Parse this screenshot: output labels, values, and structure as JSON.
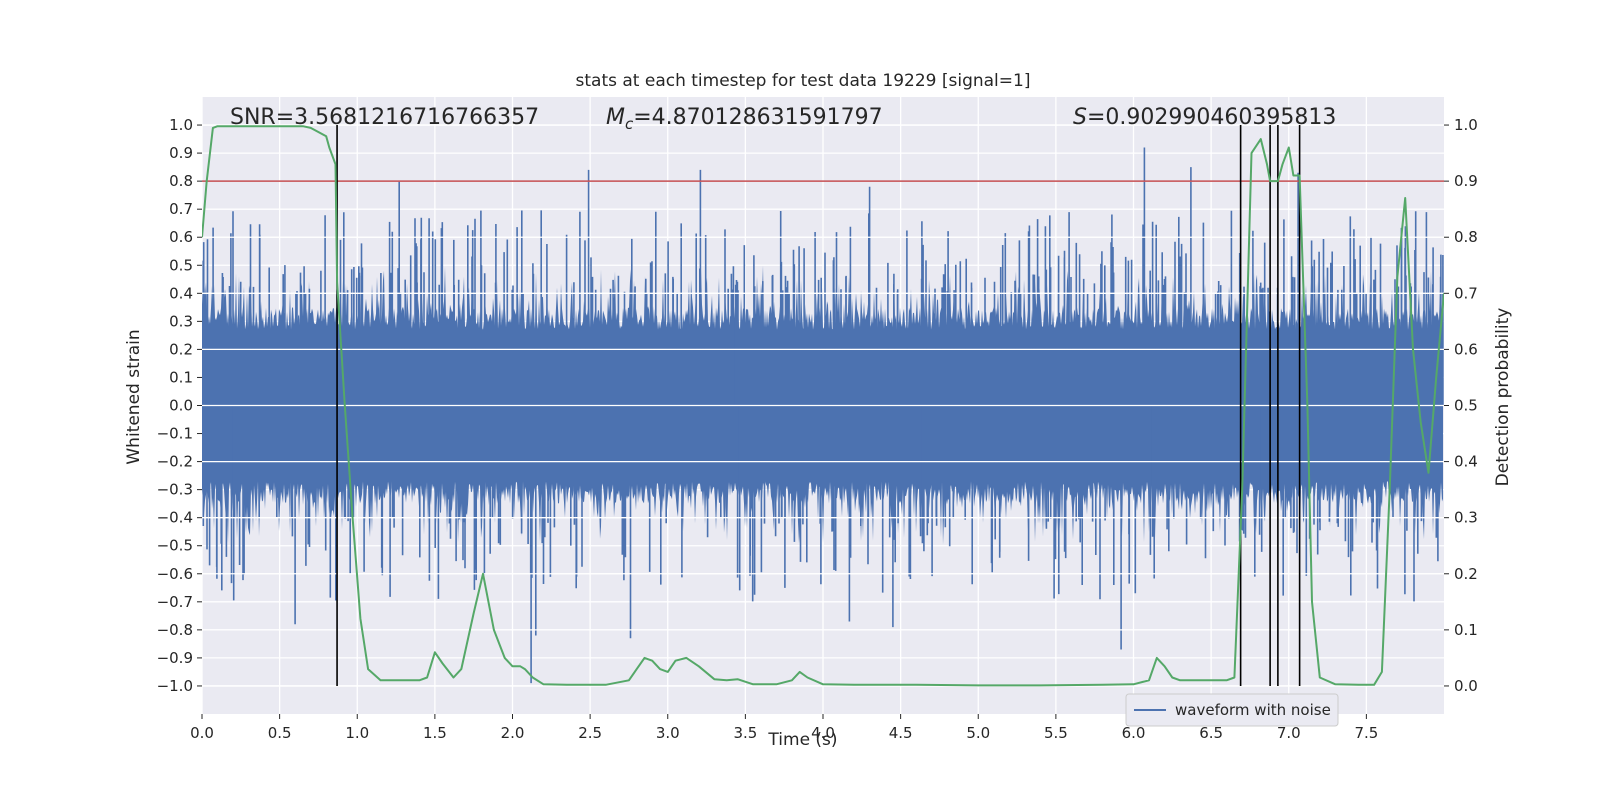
{
  "chart_data": {
    "type": "line",
    "title": "stats at each timestep for test data 19229 [signal=1]",
    "xlabel": "Time (s)",
    "ylabel_left": "Whitened strain",
    "ylabel_right": "Detection probability",
    "xlim": [
      0.0,
      8.0
    ],
    "ylim_left": [
      -1.1,
      1.1
    ],
    "ylim_right": [
      -0.05,
      1.05
    ],
    "x_ticks": [
      "0.0",
      "0.5",
      "1.0",
      "1.5",
      "2.0",
      "2.5",
      "3.0",
      "3.5",
      "4.0",
      "4.5",
      "5.0",
      "5.5",
      "6.0",
      "6.5",
      "7.0",
      "7.5"
    ],
    "y_left_ticks": [
      "1.0",
      "0.9",
      "0.8",
      "0.7",
      "0.6",
      "0.5",
      "0.4",
      "0.3",
      "0.2",
      "0.1",
      "0.0",
      "−0.1",
      "−0.2",
      "−0.3",
      "−0.4",
      "−0.5",
      "−0.6",
      "−0.7",
      "−0.8",
      "−0.9",
      "−1.0"
    ],
    "y_right_ticks": [
      "1.0",
      "0.9",
      "0.8",
      "0.7",
      "0.6",
      "0.5",
      "0.4",
      "0.3",
      "0.2",
      "0.1",
      "0.0"
    ],
    "annotations": {
      "snr": "SNR=3.5681216716766357",
      "mc_symbol": "M",
      "mc_sub": "c",
      "mc_value": "=4.870128631591797",
      "s_symbol": "S",
      "s_value": "=0.902990460395813"
    },
    "threshold_probability": 0.9,
    "vertical_markers_s": [
      0.87,
      6.69,
      6.88,
      6.93,
      7.07
    ],
    "waveform": {
      "name": "waveform with noise",
      "color": "#4c72b0",
      "num_samples": 8192,
      "typical_positive_envelope": 0.3,
      "typical_negative_envelope": -0.3,
      "peaks": [
        {
          "t": 1.27,
          "v": 0.8
        },
        {
          "t": 2.49,
          "v": 0.84
        },
        {
          "t": 3.21,
          "v": 0.84
        },
        {
          "t": 4.3,
          "v": 0.78
        },
        {
          "t": 6.07,
          "v": 0.92
        },
        {
          "t": 6.37,
          "v": 0.85
        },
        {
          "t": 7.06,
          "v": 0.83
        }
      ],
      "troughs": [
        {
          "t": 0.6,
          "v": -0.78
        },
        {
          "t": 2.12,
          "v": -0.99
        },
        {
          "t": 2.15,
          "v": -0.82
        },
        {
          "t": 2.76,
          "v": -0.83
        },
        {
          "t": 4.17,
          "v": -0.77
        },
        {
          "t": 4.45,
          "v": -0.79
        },
        {
          "t": 5.92,
          "v": -0.87
        }
      ]
    },
    "probability": {
      "color": "#55a868",
      "x": [
        0.0,
        0.03,
        0.07,
        0.1,
        0.2,
        0.3,
        0.4,
        0.5,
        0.6,
        0.65,
        0.7,
        0.8,
        0.82,
        0.86,
        0.87,
        0.92,
        0.97,
        1.02,
        1.07,
        1.15,
        1.25,
        1.35,
        1.4,
        1.45,
        1.5,
        1.55,
        1.62,
        1.67,
        1.75,
        1.81,
        1.88,
        1.95,
        2.0,
        2.05,
        2.08,
        2.13,
        2.2,
        2.35,
        2.6,
        2.75,
        2.8,
        2.85,
        2.9,
        2.95,
        3.0,
        3.05,
        3.12,
        3.2,
        3.3,
        3.38,
        3.45,
        3.55,
        3.7,
        3.8,
        3.85,
        3.9,
        4.0,
        4.2,
        4.6,
        5.0,
        5.4,
        5.8,
        6.0,
        6.1,
        6.15,
        6.2,
        6.25,
        6.3,
        6.4,
        6.6,
        6.65,
        6.7,
        6.76,
        6.82,
        6.86,
        6.88,
        6.93,
        6.96,
        7.0,
        7.03,
        7.07,
        7.12,
        7.15,
        7.2,
        7.3,
        7.45,
        7.55,
        7.6,
        7.65,
        7.7,
        7.75,
        7.8,
        7.85,
        7.9,
        7.95,
        8.0
      ],
      "y": [
        0.8,
        0.9,
        0.995,
        0.998,
        0.998,
        0.998,
        0.998,
        0.998,
        0.998,
        0.998,
        0.995,
        0.98,
        0.96,
        0.93,
        0.72,
        0.5,
        0.3,
        0.12,
        0.03,
        0.01,
        0.01,
        0.01,
        0.01,
        0.015,
        0.06,
        0.04,
        0.015,
        0.03,
        0.13,
        0.2,
        0.1,
        0.05,
        0.035,
        0.035,
        0.03,
        0.015,
        0.003,
        0.002,
        0.002,
        0.01,
        0.03,
        0.05,
        0.045,
        0.03,
        0.025,
        0.045,
        0.05,
        0.035,
        0.012,
        0.01,
        0.012,
        0.003,
        0.003,
        0.01,
        0.025,
        0.015,
        0.003,
        0.002,
        0.002,
        0.001,
        0.001,
        0.002,
        0.003,
        0.01,
        0.05,
        0.035,
        0.015,
        0.01,
        0.01,
        0.01,
        0.015,
        0.35,
        0.95,
        0.975,
        0.93,
        0.9,
        0.9,
        0.93,
        0.96,
        0.91,
        0.91,
        0.5,
        0.15,
        0.015,
        0.003,
        0.002,
        0.002,
        0.025,
        0.35,
        0.73,
        0.87,
        0.6,
        0.47,
        0.38,
        0.55,
        0.7
      ]
    }
  }
}
